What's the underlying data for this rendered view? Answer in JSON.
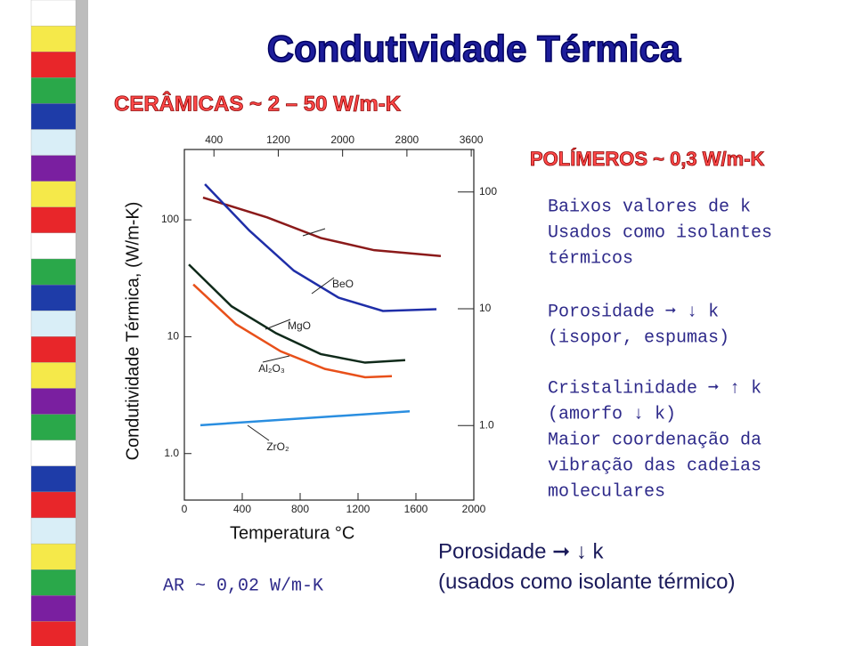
{
  "title": "Condutividade Térmica",
  "subtitle": "CERÂMICAS  ~ 2 – 50 W/m-K",
  "chart_data": {
    "type": "line",
    "x_label": "Temperatura °C",
    "y_label": "Condutividade Térmica, (W/m-K)",
    "xlim": [
      0,
      2000
    ],
    "xticks": [
      0,
      400,
      800,
      1200,
      1600,
      2000
    ],
    "x2lim": [
      32,
      3632
    ],
    "x2ticks": [
      400,
      1200,
      2000,
      2800,
      3600
    ],
    "y_scale": "log",
    "ylim": [
      0.4,
      400
    ],
    "yticks": [
      {
        "value": 1,
        "label": "1.0"
      },
      10,
      100
    ],
    "y2lim": [
      0.23,
      231
    ],
    "y2ticks": [
      {
        "value": 1,
        "label": "1.0"
      },
      10,
      100
    ],
    "series": [
      {
        "color": "#8b1a1a",
        "x": [
          129,
          572,
          942,
          1311,
          1772
        ],
        "values": [
          155,
          105,
          70,
          55,
          49
        ]
      },
      {
        "name": "BeO",
        "color": "#1f2ea8",
        "x": [
          142,
          449,
          757,
          1065,
          1372,
          1742
        ],
        "values": [
          202,
          81,
          36.7,
          21.6,
          16.6,
          17.2
        ]
      },
      {
        "name": "MgO",
        "color": "#0f2a1a",
        "x": [
          31,
          326,
          634,
          942,
          1249,
          1526
        ],
        "values": [
          41.5,
          18.2,
          10.7,
          7.1,
          6.0,
          6.3
        ]
      },
      {
        "name": "Al₂O₃",
        "color": "#e8501a",
        "x": [
          62,
          357,
          665,
          972,
          1249,
          1434
        ],
        "values": [
          28,
          12.8,
          7.5,
          5.3,
          4.5,
          4.6
        ]
      },
      {
        "name": "ZrO₂",
        "color": "#2a8ee0",
        "x": [
          111,
          1557
        ],
        "values": [
          1.75,
          2.3
        ]
      }
    ]
  },
  "air_note": "AR  ~ 0,02 W/m-K",
  "polymers": {
    "heading": "POLÍMEROS ~ 0,3 W/m-K",
    "paragraphs": [
      [
        "Baixos valores de k",
        "Usados como isolantes",
        "térmicos"
      ],
      [
        "Porosidade ➞ ↓ k",
        "(isopor, espumas)"
      ],
      [
        "Cristalinidade ➞ ↑ k",
        "(amorfo ↓ k)",
        "Maior coordenação da",
        "vibração das cadeias",
        "moleculares"
      ]
    ]
  },
  "footer": [
    "Porosidade ➞ ↓ k",
    "(usados como isolante térmico)"
  ]
}
